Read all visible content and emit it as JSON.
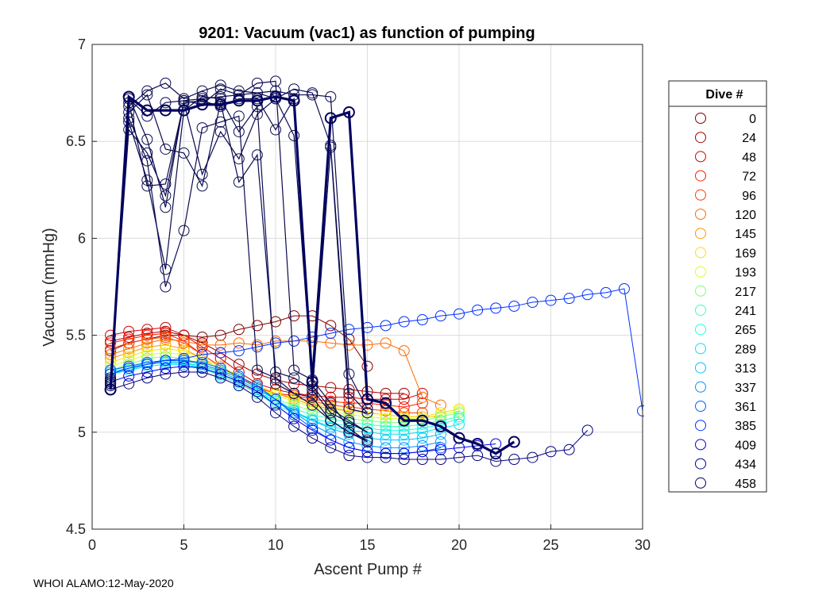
{
  "chart_data": {
    "type": "line",
    "title": "9201: Vacuum (vac1) as function of pumping",
    "xlabel": "Ascent Pump #",
    "ylabel": "Vacuum (mmHg)",
    "xlim": [
      0,
      30
    ],
    "ylim": [
      4.5,
      7
    ],
    "xticks": [
      0,
      5,
      10,
      15,
      20,
      25,
      30
    ],
    "yticks": [
      4.5,
      5,
      5.5,
      6,
      6.5,
      7
    ],
    "grid": true,
    "legend": {
      "title": "Dive #",
      "position": "right",
      "entries": [
        "0",
        "24",
        "48",
        "72",
        "96",
        "120",
        "145",
        "169",
        "193",
        "217",
        "241",
        "265",
        "289",
        "313",
        "337",
        "361",
        "385",
        "409",
        "434",
        "458"
      ],
      "colors": [
        "#7f0000",
        "#a00000",
        "#d40000",
        "#ff1a00",
        "#ff3b00",
        "#ff6a00",
        "#ff9600",
        "#ffdf00",
        "#d8ff1f",
        "#7dff7a",
        "#3dffb9",
        "#1fffdf",
        "#00e4f8",
        "#00c0ff",
        "#0090ff",
        "#0060ff",
        "#0030ff",
        "#0000ee",
        "#00007f",
        "#000060"
      ]
    },
    "series": [
      {
        "name": "0",
        "color": "#7f0000",
        "x": [
          1,
          2,
          3,
          4,
          5,
          6,
          7,
          8,
          9,
          10,
          11,
          12,
          13,
          14,
          15
        ],
        "y": [
          5.42,
          5.46,
          5.48,
          5.5,
          5.5,
          5.49,
          5.5,
          5.53,
          5.55,
          5.57,
          5.6,
          5.6,
          5.55,
          5.48,
          5.34
        ]
      },
      {
        "name": "24",
        "color": "#a00000",
        "x": [
          1,
          2,
          3,
          4,
          5,
          6,
          7,
          8,
          9,
          10,
          11,
          12,
          13,
          14,
          15,
          16,
          17
        ],
        "y": [
          5.47,
          5.49,
          5.51,
          5.52,
          5.5,
          5.46,
          5.41,
          5.35,
          5.3,
          5.27,
          5.25,
          5.24,
          5.23,
          5.22,
          5.21,
          5.2,
          5.2
        ]
      },
      {
        "name": "48",
        "color": "#d40000",
        "x": [
          1,
          2,
          3,
          4,
          5,
          6,
          7,
          8,
          9,
          10,
          11,
          12,
          13,
          14,
          15,
          16,
          17,
          18
        ],
        "y": [
          5.5,
          5.52,
          5.53,
          5.54,
          5.5,
          5.44,
          5.38,
          5.31,
          5.25,
          5.22,
          5.2,
          5.19,
          5.18,
          5.18,
          5.17,
          5.17,
          5.17,
          5.2
        ]
      },
      {
        "name": "72",
        "color": "#ff1a00",
        "x": [
          1,
          2,
          3,
          4,
          5,
          6,
          7,
          8,
          9,
          10,
          11,
          12,
          13,
          14,
          15,
          16,
          17,
          18
        ],
        "y": [
          5.46,
          5.48,
          5.5,
          5.51,
          5.47,
          5.4,
          5.34,
          5.28,
          5.23,
          5.2,
          5.19,
          5.17,
          5.16,
          5.15,
          5.15,
          5.14,
          5.13,
          5.15
        ]
      },
      {
        "name": "96",
        "color": "#ff3b00",
        "x": [
          1,
          2,
          3,
          4,
          5,
          6,
          7,
          8,
          9,
          10,
          11,
          12,
          13,
          14,
          15,
          16,
          17,
          18
        ],
        "y": [
          5.43,
          5.46,
          5.48,
          5.49,
          5.46,
          5.4,
          5.34,
          5.28,
          5.24,
          5.2,
          5.18,
          5.16,
          5.14,
          5.13,
          5.12,
          5.11,
          5.1,
          5.1
        ]
      },
      {
        "name": "120",
        "color": "#ff6a00",
        "x": [
          1,
          2,
          3,
          4,
          5,
          6,
          7,
          8,
          9,
          10,
          11,
          12,
          13,
          14,
          15,
          16,
          17,
          18,
          19
        ],
        "y": [
          5.4,
          5.43,
          5.46,
          5.48,
          5.47,
          5.45,
          5.45,
          5.46,
          5.45,
          5.47,
          5.47,
          5.47,
          5.46,
          5.45,
          5.45,
          5.46,
          5.42,
          5.18,
          5.14
        ]
      },
      {
        "name": "145",
        "color": "#ff9600",
        "x": [
          1,
          2,
          3,
          4,
          5,
          6,
          7,
          8,
          9,
          10,
          11,
          12,
          13,
          14,
          15,
          16,
          17,
          18,
          19
        ],
        "y": [
          5.38,
          5.41,
          5.44,
          5.45,
          5.43,
          5.38,
          5.32,
          5.26,
          5.2,
          5.2,
          5.17,
          5.14,
          5.12,
          5.11,
          5.1,
          5.09,
          5.08,
          5.08,
          5.08
        ]
      },
      {
        "name": "169",
        "color": "#ffdf00",
        "x": [
          1,
          2,
          3,
          4,
          5,
          6,
          7,
          8,
          9,
          10,
          11,
          12,
          13,
          14,
          15,
          16,
          17,
          18,
          19,
          20
        ],
        "y": [
          5.36,
          5.39,
          5.42,
          5.43,
          5.42,
          5.38,
          5.34,
          5.29,
          5.24,
          5.2,
          5.18,
          5.15,
          5.13,
          5.11,
          5.1,
          5.09,
          5.08,
          5.08,
          5.1,
          5.12
        ]
      },
      {
        "name": "193",
        "color": "#d8ff1f",
        "x": [
          1,
          2,
          3,
          4,
          5,
          6,
          7,
          8,
          9,
          10,
          11,
          12,
          13,
          14,
          15,
          16,
          17,
          18,
          19,
          20
        ],
        "y": [
          5.34,
          5.37,
          5.4,
          5.41,
          5.4,
          5.37,
          5.33,
          5.28,
          5.23,
          5.19,
          5.16,
          5.13,
          5.11,
          5.09,
          5.08,
          5.07,
          5.07,
          5.07,
          5.09,
          5.11
        ]
      },
      {
        "name": "217",
        "color": "#7dff7a",
        "x": [
          1,
          2,
          3,
          4,
          5,
          6,
          7,
          8,
          9,
          10,
          11,
          12,
          13,
          14,
          15,
          16,
          17,
          18,
          19,
          20
        ],
        "y": [
          5.32,
          5.35,
          5.38,
          5.39,
          5.38,
          5.35,
          5.31,
          5.27,
          5.22,
          5.17,
          5.14,
          5.11,
          5.09,
          5.07,
          5.06,
          5.05,
          5.05,
          5.06,
          5.08,
          5.1
        ]
      },
      {
        "name": "241",
        "color": "#3dffb9",
        "x": [
          1,
          2,
          3,
          4,
          5,
          6,
          7,
          8,
          9,
          10,
          11,
          12,
          13,
          14,
          15,
          16,
          17,
          18,
          19,
          20
        ],
        "y": [
          5.3,
          5.33,
          5.36,
          5.37,
          5.36,
          5.33,
          5.3,
          5.26,
          5.21,
          5.15,
          5.12,
          5.09,
          5.07,
          5.05,
          5.04,
          5.03,
          5.03,
          5.04,
          5.06,
          5.08
        ]
      },
      {
        "name": "265",
        "color": "#1fffdf",
        "x": [
          1,
          2,
          3,
          4,
          5,
          6,
          7,
          8,
          9,
          10,
          11,
          12,
          13,
          14,
          15,
          16,
          17,
          18,
          19,
          20
        ],
        "y": [
          5.3,
          5.32,
          5.35,
          5.36,
          5.35,
          5.33,
          5.29,
          5.25,
          5.2,
          5.14,
          5.1,
          5.07,
          5.05,
          5.03,
          5.02,
          5.01,
          5.01,
          5.02,
          5.04,
          5.07
        ]
      },
      {
        "name": "289",
        "color": "#00e4f8",
        "x": [
          1,
          2,
          3,
          4,
          5,
          6,
          7,
          8,
          9,
          10,
          11,
          12,
          13,
          14,
          15,
          16,
          17,
          18,
          19,
          20
        ],
        "y": [
          5.3,
          5.32,
          5.34,
          5.35,
          5.35,
          5.33,
          5.3,
          5.26,
          5.21,
          5.16,
          5.1,
          5.06,
          5.03,
          5.01,
          5.0,
          4.99,
          4.99,
          5.0,
          5.02,
          5.04
        ]
      },
      {
        "name": "313",
        "color": "#00c0ff",
        "x": [
          1,
          2,
          3,
          4,
          5,
          6,
          7,
          8,
          9,
          10,
          11,
          12,
          13,
          14,
          15,
          16,
          17,
          18,
          19
        ],
        "y": [
          5.31,
          5.33,
          5.35,
          5.36,
          5.36,
          5.34,
          5.31,
          5.27,
          5.22,
          5.17,
          5.11,
          5.06,
          5.02,
          4.99,
          4.97,
          4.96,
          4.96,
          4.97,
          4.99
        ]
      },
      {
        "name": "337",
        "color": "#0090ff",
        "x": [
          1,
          2,
          3,
          4,
          5,
          6,
          7,
          8,
          9,
          10,
          11,
          12,
          13,
          14,
          15,
          16,
          17,
          18,
          19
        ],
        "y": [
          5.32,
          5.34,
          5.36,
          5.37,
          5.37,
          5.35,
          5.32,
          5.28,
          5.23,
          5.17,
          5.1,
          5.04,
          4.99,
          4.95,
          4.93,
          4.92,
          4.92,
          4.93,
          4.95
        ]
      },
      {
        "name": "361",
        "color": "#0060ff",
        "x": [
          1,
          2,
          3,
          4,
          5,
          6,
          7,
          8,
          9,
          10,
          11,
          12,
          13,
          14,
          15,
          16,
          17,
          18,
          19
        ],
        "y": [
          5.32,
          5.34,
          5.36,
          5.37,
          5.37,
          5.36,
          5.33,
          5.29,
          5.24,
          5.17,
          5.09,
          5.02,
          4.96,
          4.92,
          4.9,
          4.89,
          4.89,
          4.9,
          4.92
        ]
      },
      {
        "name": "385",
        "color": "#0030ff",
        "x": [
          1,
          2,
          3,
          4,
          5,
          6,
          7,
          8,
          9,
          10,
          11,
          12,
          13,
          14,
          15,
          16,
          17,
          18,
          19,
          20,
          21,
          22,
          23,
          24,
          25,
          26,
          27,
          28,
          29,
          30
        ],
        "y": [
          5.3,
          5.33,
          5.35,
          5.37,
          5.38,
          5.4,
          5.41,
          5.42,
          5.44,
          5.46,
          5.47,
          5.49,
          5.51,
          5.53,
          5.54,
          5.55,
          5.57,
          5.58,
          5.6,
          5.61,
          5.63,
          5.64,
          5.65,
          5.67,
          5.68,
          5.69,
          5.71,
          5.72,
          5.74,
          5.11
        ]
      },
      {
        "name": "409",
        "color": "#0000ee",
        "x": [
          1,
          2,
          3,
          4,
          5,
          6,
          7,
          8,
          9,
          10,
          11,
          12,
          13,
          14,
          15,
          16,
          17,
          18,
          19,
          20,
          21,
          22
        ],
        "y": [
          5.26,
          5.29,
          5.31,
          5.33,
          5.34,
          5.33,
          5.3,
          5.26,
          5.21,
          5.14,
          5.07,
          5.01,
          4.96,
          4.92,
          4.9,
          4.89,
          4.89,
          4.9,
          4.91,
          4.92,
          4.93,
          4.94
        ]
      },
      {
        "name": "434",
        "color": "#00007f",
        "x": [
          1,
          2,
          3,
          4,
          5,
          6,
          7,
          8,
          9,
          10,
          11,
          12,
          13,
          14,
          15,
          16,
          17,
          18,
          19,
          20,
          21,
          22,
          23,
          24,
          25,
          26,
          27
        ],
        "y": [
          5.22,
          5.25,
          5.28,
          5.3,
          5.31,
          5.31,
          5.28,
          5.24,
          5.18,
          5.1,
          5.03,
          4.97,
          4.92,
          4.88,
          4.87,
          4.87,
          4.86,
          4.86,
          4.86,
          4.87,
          4.88,
          4.85,
          4.86,
          4.87,
          4.9,
          4.91,
          5.01
        ]
      },
      {
        "name": "458",
        "color": "#000060",
        "x": [
          1,
          2,
          3,
          4,
          5,
          6,
          7,
          8,
          9,
          10,
          11,
          12,
          13,
          14,
          15,
          16,
          17,
          18,
          19,
          20,
          21,
          22,
          23
        ],
        "y": [
          5.22,
          6.73,
          6.66,
          6.66,
          6.66,
          6.69,
          6.69,
          6.71,
          6.71,
          6.73,
          6.71,
          5.26,
          6.62,
          6.65,
          5.17,
          5.15,
          5.06,
          5.06,
          5.03,
          4.97,
          4.94,
          4.89,
          4.95
        ]
      }
    ],
    "spike_profiles": [
      {
        "x": [
          1,
          2,
          3,
          4,
          5,
          6,
          7,
          8,
          9,
          10,
          11,
          12,
          13,
          14,
          15
        ],
        "y": [
          5.25,
          6.72,
          6.63,
          6.7,
          6.71,
          6.72,
          6.73,
          6.74,
          6.75,
          6.76,
          6.74,
          6.74,
          6.73,
          5.3,
          5.12
        ]
      },
      {
        "x": [
          1,
          2,
          3,
          4,
          5,
          6,
          7,
          8,
          9,
          10,
          11,
          12,
          13,
          14,
          15
        ],
        "y": [
          5.27,
          6.7,
          6.27,
          6.28,
          6.7,
          6.71,
          6.68,
          6.72,
          6.72,
          6.56,
          6.72,
          5.2,
          6.47,
          5.12,
          5.1
        ]
      },
      {
        "x": [
          1,
          2,
          3,
          4,
          5,
          6,
          7,
          8,
          9,
          10,
          11,
          12,
          13,
          14,
          15
        ],
        "y": [
          5.26,
          6.56,
          6.44,
          6.22,
          6.7,
          6.33,
          6.55,
          6.41,
          6.64,
          6.72,
          6.53,
          5.24,
          5.12,
          5.06,
          5.0
        ]
      },
      {
        "x": [
          1,
          2,
          3,
          4,
          5,
          6,
          7,
          8,
          9,
          10,
          11,
          12,
          13,
          14,
          15
        ],
        "y": [
          5.28,
          6.65,
          6.74,
          6.46,
          6.44,
          6.27,
          6.7,
          6.29,
          6.43,
          5.31,
          5.28,
          5.22,
          5.1,
          5.05,
          5.0
        ]
      },
      {
        "x": [
          1,
          2,
          3,
          4,
          5,
          6,
          7,
          8,
          9,
          10,
          11,
          12,
          13,
          14,
          15
        ],
        "y": [
          5.25,
          6.62,
          6.4,
          5.75,
          6.04,
          6.57,
          6.6,
          6.63,
          5.32,
          5.28,
          5.2,
          5.18,
          5.06,
          5.0,
          4.96
        ]
      },
      {
        "x": [
          1,
          2,
          3,
          4,
          5,
          6,
          7,
          8,
          9,
          10,
          11,
          12,
          13,
          14,
          15
        ],
        "y": [
          5.26,
          6.6,
          6.3,
          5.84,
          6.66,
          6.73,
          6.72,
          6.55,
          6.68,
          5.25,
          5.2,
          5.14,
          5.06,
          5.0,
          4.95
        ]
      },
      {
        "x": [
          1,
          2,
          3,
          4,
          5,
          6,
          7,
          8,
          9,
          10,
          11,
          12,
          13,
          14,
          15
        ],
        "y": [
          5.24,
          6.73,
          6.51,
          6.16,
          6.71,
          6.69,
          6.77,
          6.74,
          6.8,
          6.81,
          5.32,
          5.27,
          5.15,
          5.02,
          4.95
        ]
      },
      {
        "x": [
          1,
          2,
          3,
          4,
          5,
          6,
          7,
          8,
          9,
          10,
          11,
          12,
          13,
          14,
          15
        ],
        "y": [
          5.25,
          6.68,
          6.76,
          6.8,
          6.72,
          6.76,
          6.79,
          6.76,
          6.75,
          6.72,
          6.77,
          6.75,
          6.48,
          5.2,
          5.1
        ]
      }
    ]
  },
  "footer": "WHOI ALAMO:12-May-2020"
}
